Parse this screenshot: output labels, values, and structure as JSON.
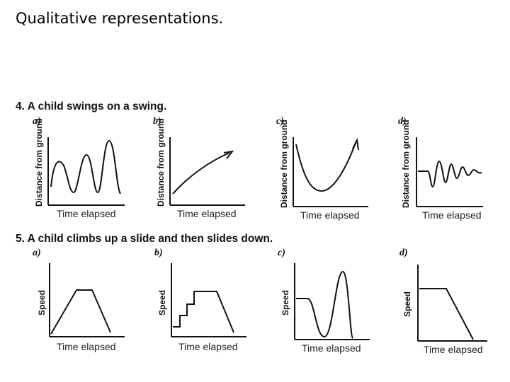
{
  "page": {
    "title": "Qualitative representations."
  },
  "question4": {
    "text": "4. A child swings on a swing.",
    "y_label": "Distance from ground",
    "x_label": "Time elapsed",
    "options": [
      {
        "letter": "a)"
      },
      {
        "letter": "b)"
      },
      {
        "letter": "c)"
      },
      {
        "letter": "d)"
      }
    ]
  },
  "question5": {
    "text": "5. A child climbs up a slide and then slides down.",
    "y_label": "Speed",
    "x_label": "Time elapsed",
    "options": [
      {
        "letter": "a)"
      },
      {
        "letter": "b)"
      },
      {
        "letter": "c)"
      },
      {
        "letter": "d)"
      }
    ]
  }
}
